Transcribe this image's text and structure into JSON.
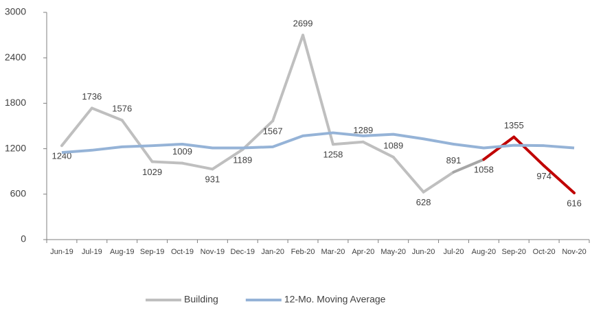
{
  "chart_data": {
    "type": "line",
    "categories": [
      "Jun-19",
      "Jul-19",
      "Aug-19",
      "Sep-19",
      "Oct-19",
      "Nov-19",
      "Dec-19",
      "Jan-20",
      "Feb-20",
      "Mar-20",
      "Apr-20",
      "May-20",
      "Jun-20",
      "Jul-20",
      "Aug-20",
      "Sep-20",
      "Oct-20",
      "Nov-20"
    ],
    "series": [
      {
        "name": "Building",
        "color": "#bfbfbf",
        "values": [
          1240,
          1736,
          1576,
          1029,
          1009,
          931,
          1189,
          1567,
          2699,
          1258,
          1289,
          1089,
          628,
          891,
          1058,
          1355,
          974,
          616
        ],
        "segment_colors": [
          "#bfbfbf",
          "#bfbfbf",
          "#bfbfbf",
          "#bfbfbf",
          "#bfbfbf",
          "#bfbfbf",
          "#bfbfbf",
          "#bfbfbf",
          "#bfbfbf",
          "#bfbfbf",
          "#bfbfbf",
          "#bfbfbf",
          "#bfbfbf",
          "#a6a6a6",
          "#c00000",
          "#c00000",
          "#c00000"
        ],
        "data_labels": true
      },
      {
        "name": "12-Mo. Moving Average",
        "color": "#95b3d7",
        "values": [
          1150,
          1180,
          1225,
          1240,
          1260,
          1210,
          1210,
          1225,
          1370,
          1410,
          1370,
          1390,
          1330,
          1260,
          1210,
          1245,
          1240,
          1210
        ]
      }
    ],
    "ylim": [
      0,
      3000
    ],
    "yticks": [
      0,
      600,
      1200,
      1800,
      2400,
      3000
    ],
    "grid": false,
    "legend": "bottom"
  }
}
